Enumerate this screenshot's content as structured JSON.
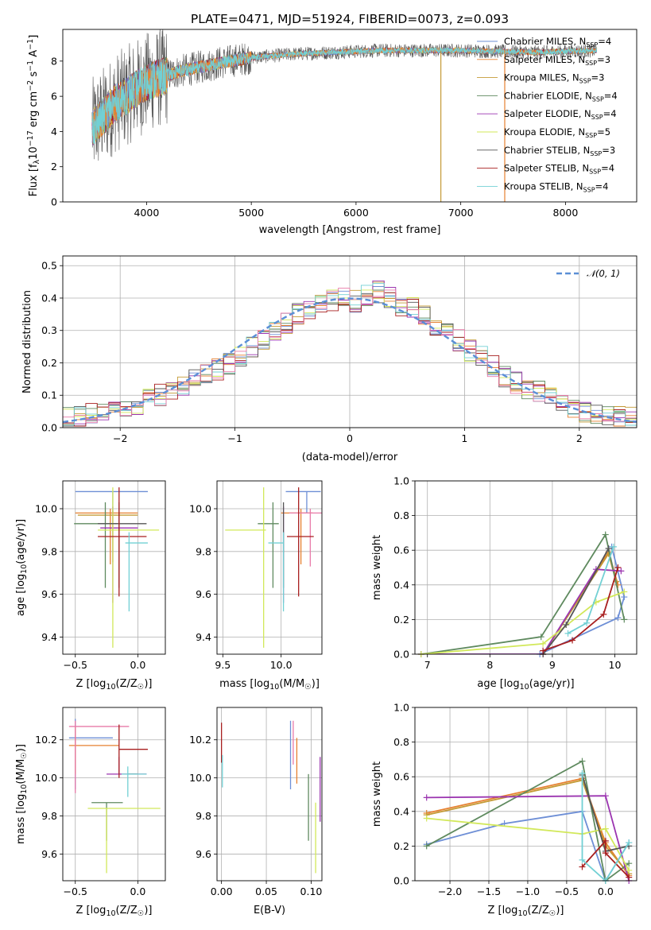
{
  "figure": {
    "title": "PLATE=0471, MJD=51924, FIBERID=0073, z=0.093"
  },
  "colors": {
    "Chabrier MILES": "#6e8fd6",
    "Salpeter MILES": "#e68030",
    "Kroupa MILES": "#c49a35",
    "Chabrier ELODIE": "#5f8a5f",
    "Salpeter ELODIE": "#9b35b0",
    "Kroupa ELODIE": "#d2e85a",
    "Chabrier STELIB": "#555555",
    "Salpeter STELIB": "#a81f1f",
    "Kroupa STELIB": "#72d0d4",
    "Pink": "#e87aa8",
    "Normal": "#5b8fd6"
  },
  "chart_data": [
    {
      "id": "spectrum",
      "type": "line",
      "xlabel": "wavelength [Angstrom, rest frame]",
      "ylabel_parts": [
        "Flux [f",
        "λ",
        "10",
        "−17",
        " erg cm",
        "−2",
        " s",
        "−1",
        " A",
        "−1",
        "]"
      ],
      "xlim": [
        3200,
        8680
      ],
      "ylim": [
        0,
        9.8
      ],
      "xticks": [
        4000,
        5000,
        6000,
        7000,
        8000
      ],
      "yticks": [
        0,
        2,
        4,
        6,
        8
      ],
      "continuum": {
        "x": [
          3480,
          3700,
          4000,
          4300,
          4700,
          5000,
          5400,
          5800,
          6200,
          6600,
          7000,
          7400,
          7700,
          8000,
          8300
        ],
        "y": [
          4.2,
          5.6,
          6.8,
          7.4,
          7.9,
          8.2,
          8.4,
          8.5,
          8.6,
          8.6,
          8.6,
          8.55,
          8.5,
          8.55,
          8.6
        ]
      },
      "spikes": [
        {
          "x": 6810,
          "y": 0,
          "color": "#c49a35"
        },
        {
          "x": 7420,
          "y": 0,
          "color": "#e68030"
        }
      ],
      "legend": [
        {
          "label": "Chabrier MILES, N",
          "sub": "SSP",
          "val": "=4",
          "color": "#6e8fd6"
        },
        {
          "label": "Salpeter MILES, N",
          "sub": "SSP",
          "val": "=3",
          "color": "#e68030"
        },
        {
          "label": "Kroupa MILES, N",
          "sub": "SSP",
          "val": "=3",
          "color": "#c49a35"
        },
        {
          "label": "Chabrier ELODIE, N",
          "sub": "SSP",
          "val": "=4",
          "color": "#5f8a5f"
        },
        {
          "label": "Salpeter ELODIE, N",
          "sub": "SSP",
          "val": "=4",
          "color": "#9b35b0"
        },
        {
          "label": "Kroupa ELODIE, N",
          "sub": "SSP",
          "val": "=5",
          "color": "#d2e85a"
        },
        {
          "label": "Chabrier STELIB, N",
          "sub": "SSP",
          "val": "=3",
          "color": "#555555"
        },
        {
          "label": "Salpeter STELIB, N",
          "sub": "SSP",
          "val": "=4",
          "color": "#a81f1f"
        },
        {
          "label": "Kroupa STELIB, N",
          "sub": "SSP",
          "val": "=4",
          "color": "#72d0d4"
        }
      ]
    },
    {
      "id": "residuals",
      "type": "histogram",
      "xlabel": "(data-model)/error",
      "ylabel": "Normed distribution",
      "xlim": [
        -2.5,
        2.5
      ],
      "ylim": [
        0,
        0.53
      ],
      "xticks": [
        -2,
        -1,
        0,
        1,
        2
      ],
      "yticks": [
        0.0,
        0.1,
        0.2,
        0.3,
        0.4,
        0.5
      ],
      "bin_width": 0.1,
      "bin_start": -2.5,
      "histogram": [
        0.03,
        0.03,
        0.04,
        0.05,
        0.07,
        0.06,
        0.07,
        0.09,
        0.1,
        0.11,
        0.13,
        0.15,
        0.16,
        0.18,
        0.2,
        0.22,
        0.25,
        0.27,
        0.3,
        0.32,
        0.35,
        0.36,
        0.38,
        0.39,
        0.4,
        0.39,
        0.41,
        0.42,
        0.4,
        0.38,
        0.37,
        0.35,
        0.32,
        0.29,
        0.27,
        0.24,
        0.22,
        0.19,
        0.16,
        0.14,
        0.12,
        0.11,
        0.09,
        0.07,
        0.06,
        0.05,
        0.04,
        0.04,
        0.03,
        0.03
      ],
      "normal_curve": {
        "label": "𝒩(0, 1)",
        "mean": 0,
        "sigma": 1,
        "color": "#5b8fd6"
      }
    },
    {
      "id": "age-vs-z",
      "type": "errorbar",
      "xlabel_parts": [
        "Z [log",
        "10",
        "(Z/Z",
        "☉",
        ")]"
      ],
      "ylabel_parts": [
        "age  [log",
        "10",
        "(age/yr)]"
      ],
      "xlim": [
        -0.6,
        0.22
      ],
      "ylim": [
        9.32,
        10.13
      ],
      "xticks": [
        -0.5,
        0.0
      ],
      "yticks": [
        9.4,
        9.6,
        9.8,
        10.0
      ],
      "points": [
        {
          "x": -0.2,
          "xerr": [
            0.3,
            0.28
          ],
          "y": 10.08,
          "yerr": [
            0.1,
            0.0
          ],
          "color": "#6e8fd6"
        },
        {
          "x": -0.22,
          "xerr": [
            0.28,
            0.22
          ],
          "y": 9.98,
          "yerr": [
            0.24,
            0.02
          ],
          "color": "#e68030"
        },
        {
          "x": -0.2,
          "xerr": [
            0.28,
            0.2
          ],
          "y": 9.97,
          "yerr": [
            0.22,
            0.02
          ],
          "color": "#c49a35"
        },
        {
          "x": -0.26,
          "xerr": [
            0.25,
            0.1
          ],
          "y": 9.93,
          "yerr": [
            0.3,
            0.1
          ],
          "color": "#5f8a5f"
        },
        {
          "x": -0.2,
          "xerr": [
            0.1,
            0.2
          ],
          "y": 9.91,
          "yerr": [
            0.35,
            0.1
          ],
          "color": "#9b35b0"
        },
        {
          "x": -0.2,
          "xerr": [
            0.12,
            0.37
          ],
          "y": 9.9,
          "yerr": [
            0.55,
            0.2
          ],
          "color": "#d2e85a"
        },
        {
          "x": -0.15,
          "xerr": [
            0.17,
            0.22
          ],
          "y": 9.93,
          "yerr": [
            0.3,
            0.1
          ],
          "color": "#555555"
        },
        {
          "x": -0.15,
          "xerr": [
            0.17,
            0.22
          ],
          "y": 9.87,
          "yerr": [
            0.28,
            0.23
          ],
          "color": "#a81f1f"
        },
        {
          "x": -0.07,
          "xerr": [
            0.03,
            0.15
          ],
          "y": 9.84,
          "yerr": [
            0.32,
            0.05
          ],
          "color": "#72d0d4"
        }
      ]
    },
    {
      "id": "age-vs-mass",
      "type": "errorbar",
      "xlabel_parts": [
        "mass [log",
        "10",
        "(M/M",
        "☉",
        ")]"
      ],
      "ylabel_parts": [],
      "xlim": [
        9.45,
        10.35
      ],
      "ylim": [
        9.32,
        10.13
      ],
      "xticks": [
        9.5,
        10.0
      ],
      "yticks": [
        9.4,
        9.6,
        9.8,
        10.0
      ],
      "points": [
        {
          "x": 10.22,
          "xerr": [
            0.18,
            0.12
          ],
          "y": 10.08,
          "yerr": [
            0.1,
            0.0
          ],
          "color": "#6e8fd6"
        },
        {
          "x": 10.17,
          "xerr": [
            0.17,
            0.1
          ],
          "y": 9.98,
          "yerr": [
            0.24,
            0.02
          ],
          "color": "#e68030"
        },
        {
          "x": 10.25,
          "xerr": [
            0.18,
            0.1
          ],
          "y": 9.98,
          "yerr": [
            0.25,
            0.02
          ],
          "color": "#e87aa8"
        },
        {
          "x": 9.93,
          "xerr": [
            0.13,
            0.05
          ],
          "y": 9.93,
          "yerr": [
            0.3,
            0.1
          ],
          "color": "#5f8a5f"
        },
        {
          "x": 10.02,
          "xerr": [
            0.0,
            0.0
          ],
          "y": 9.91,
          "yerr": [
            0.35,
            0.1
          ],
          "color": "#9b35b0"
        },
        {
          "x": 9.85,
          "xerr": [
            0.33,
            0.02
          ],
          "y": 9.9,
          "yerr": [
            0.55,
            0.2
          ],
          "color": "#d2e85a"
        },
        {
          "x": 10.02,
          "xerr": [
            0.0,
            0.0
          ],
          "y": 9.93,
          "yerr": [
            0.3,
            0.1
          ],
          "color": "#555555"
        },
        {
          "x": 10.15,
          "xerr": [
            0.1,
            0.13
          ],
          "y": 9.87,
          "yerr": [
            0.28,
            0.23
          ],
          "color": "#a81f1f"
        },
        {
          "x": 10.02,
          "xerr": [
            0.13,
            0.0
          ],
          "y": 9.84,
          "yerr": [
            0.32,
            0.05
          ],
          "color": "#72d0d4"
        }
      ]
    },
    {
      "id": "weight-vs-age",
      "type": "line",
      "xlabel_parts": [
        "age  [log",
        "10",
        "(age/yr)]"
      ],
      "ylabel": "mass weight",
      "xlim": [
        6.8,
        10.35
      ],
      "ylim": [
        0,
        1.0
      ],
      "xticks": [
        7,
        8,
        9,
        10
      ],
      "yticks": [
        0.0,
        0.2,
        0.4,
        0.6,
        0.8,
        1.0
      ],
      "series": [
        {
          "color": "#6e8fd6",
          "x": [
            8.8,
            10.05,
            10.15,
            9.95
          ],
          "y": [
            0.0,
            0.21,
            0.33,
            0.62
          ]
        },
        {
          "color": "#e68030",
          "x": [
            8.85,
            9.9,
            10.05
          ],
          "y": [
            0.0,
            0.59,
            0.4
          ]
        },
        {
          "color": "#c49a35",
          "x": [
            8.85,
            9.9,
            10.02
          ],
          "y": [
            0.0,
            0.58,
            0.42
          ]
        },
        {
          "color": "#5f8a5f",
          "x": [
            6.9,
            8.82,
            9.85,
            10.15
          ],
          "y": [
            0.0,
            0.1,
            0.69,
            0.2
          ]
        },
        {
          "color": "#9b35b0",
          "x": [
            6.9,
            8.85,
            9.7,
            10.1
          ],
          "y": [
            0.0,
            0.0,
            0.49,
            0.48
          ]
        },
        {
          "color": "#d2e85a",
          "x": [
            6.9,
            8.85,
            9.7,
            10.15
          ],
          "y": [
            0.0,
            0.06,
            0.3,
            0.36
          ]
        },
        {
          "color": "#555555",
          "x": [
            8.85,
            9.22,
            9.9
          ],
          "y": [
            0.0,
            0.17,
            0.61
          ]
        },
        {
          "color": "#a81f1f",
          "x": [
            8.85,
            9.32,
            9.82,
            10.05
          ],
          "y": [
            0.02,
            0.08,
            0.23,
            0.5
          ]
        },
        {
          "color": "#72d0d4",
          "x": [
            9.25,
            9.55,
            9.98
          ],
          "y": [
            0.12,
            0.18,
            0.62
          ]
        }
      ]
    },
    {
      "id": "mass-vs-z",
      "type": "errorbar",
      "xlabel_parts": [
        "Z [log",
        "10",
        "(Z/Z",
        "☉",
        ")]"
      ],
      "ylabel_parts": [
        "mass [log",
        "10",
        "(M/M",
        "☉",
        ")]"
      ],
      "xlim": [
        -0.6,
        0.22
      ],
      "ylim": [
        9.46,
        10.37
      ],
      "xticks": [
        -0.5,
        0.0
      ],
      "yticks": [
        9.6,
        9.8,
        10.0,
        10.2
      ],
      "points": [
        {
          "x": -0.5,
          "xerr": [
            0.05,
            0.3
          ],
          "y": 10.21,
          "yerr": [
            0.27,
            0.1
          ],
          "color": "#6e8fd6"
        },
        {
          "x": -0.5,
          "xerr": [
            0.05,
            0.35
          ],
          "y": 10.17,
          "yerr": [
            0.15,
            0.1
          ],
          "color": "#e68030"
        },
        {
          "x": -0.5,
          "xerr": [
            0.05,
            0.43
          ],
          "y": 10.27,
          "yerr": [
            0.35,
            0.03
          ],
          "color": "#e87aa8"
        },
        {
          "x": -0.25,
          "xerr": [
            0.12,
            0.13
          ],
          "y": 9.87,
          "yerr": [
            0.2,
            0.0
          ],
          "color": "#5f8a5f"
        },
        {
          "x": -0.15,
          "xerr": [
            0.1,
            0.22
          ],
          "y": 10.02,
          "yerr": [
            0.0,
            0.09
          ],
          "color": "#9b35b0"
        },
        {
          "x": -0.25,
          "xerr": [
            0.15,
            0.43
          ],
          "y": 9.84,
          "yerr": [
            0.34,
            0.0
          ],
          "color": "#d2e85a"
        },
        {
          "x": -0.08,
          "xerr": [
            0.0,
            0.08
          ],
          "y": 10.02,
          "yerr": [
            0.0,
            0.0
          ],
          "color": "#555555"
        },
        {
          "x": -0.15,
          "xerr": [
            0.0,
            0.23
          ],
          "y": 10.15,
          "yerr": [
            0.15,
            0.13
          ],
          "color": "#a81f1f"
        },
        {
          "x": -0.08,
          "xerr": [
            0.05,
            0.15
          ],
          "y": 10.02,
          "yerr": [
            0.12,
            0.04
          ],
          "color": "#72d0d4"
        }
      ]
    },
    {
      "id": "mass-vs-ebv",
      "type": "errorbar",
      "xlabel": "E(B-V)",
      "ylabel_parts": [],
      "xlim": [
        -0.005,
        0.112
      ],
      "ylim": [
        9.46,
        10.37
      ],
      "xticks": [
        0.0,
        0.05,
        0.1
      ],
      "ytick_labels": [
        "0.00",
        "0.05",
        "0.10"
      ],
      "yticks": [
        9.6,
        9.8,
        10.0,
        10.2
      ],
      "points": [
        {
          "x": 0.0,
          "y": 10.18,
          "yerr": [
            0.1,
            0.11
          ],
          "color": "#a81f1f"
        },
        {
          "x": 0.001,
          "y": 10.0,
          "yerr": [
            0.05,
            0.12
          ],
          "color": "#72d0d4"
        },
        {
          "x": 0.077,
          "y": 10.12,
          "yerr": [
            0.18,
            0.18
          ],
          "color": "#6e8fd6"
        },
        {
          "x": 0.08,
          "y": 10.15,
          "yerr": [
            0.08,
            0.15
          ],
          "color": "#e87aa8"
        },
        {
          "x": 0.084,
          "y": 10.07,
          "yerr": [
            0.1,
            0.14
          ],
          "color": "#e68030"
        },
        {
          "x": 0.097,
          "y": 9.85,
          "yerr": [
            0.18,
            0.17
          ],
          "color": "#5f8a5f"
        },
        {
          "x": 0.105,
          "y": 9.77,
          "yerr": [
            0.27,
            0.1
          ],
          "color": "#d2e85a"
        },
        {
          "x": 0.11,
          "y": 9.94,
          "yerr": [
            0.17,
            0.17
          ],
          "color": "#9b35b0"
        }
      ]
    },
    {
      "id": "weight-vs-z",
      "type": "line",
      "xlabel_parts": [
        "Z [log",
        "10",
        "(Z/Z",
        "☉",
        ")]"
      ],
      "ylabel": "mass weight",
      "xlim": [
        -2.45,
        0.4
      ],
      "ylim": [
        0,
        1.0
      ],
      "xticks": [
        -2.0,
        -1.5,
        -1.0,
        -0.5,
        0.0
      ],
      "ytick_fmt": 1,
      "yticks": [
        0.0,
        0.2,
        0.4,
        0.6,
        0.8,
        1.0
      ],
      "series": [
        {
          "color": "#6e8fd6",
          "x": [
            -2.3,
            -1.3,
            -0.3,
            0.0,
            0.3
          ],
          "y": [
            0.21,
            0.33,
            0.4,
            0.0,
            0.22
          ]
        },
        {
          "color": "#e68030",
          "x": [
            -2.3,
            -0.3,
            0.0,
            0.3
          ],
          "y": [
            0.39,
            0.59,
            0.22,
            0.03
          ]
        },
        {
          "color": "#c49a35",
          "x": [
            -2.3,
            -0.3,
            0.0,
            0.3
          ],
          "y": [
            0.38,
            0.58,
            0.2,
            0.04
          ]
        },
        {
          "color": "#5f8a5f",
          "x": [
            -2.3,
            -0.3,
            0.0,
            0.3
          ],
          "y": [
            0.2,
            0.69,
            0.0,
            0.1
          ]
        },
        {
          "color": "#9b35b0",
          "x": [
            -2.3,
            0.0,
            0.3
          ],
          "y": [
            0.48,
            0.49,
            0.0
          ]
        },
        {
          "color": "#d2e85a",
          "x": [
            -2.3,
            -0.3,
            0.0,
            0.3
          ],
          "y": [
            0.36,
            0.27,
            0.3,
            0.06
          ]
        },
        {
          "color": "#555555",
          "x": [
            -0.3,
            0.0,
            0.3
          ],
          "y": [
            0.61,
            0.17,
            0.2
          ]
        },
        {
          "color": "#a81f1f",
          "x": [
            -0.3,
            0.0,
            0.0,
            0.3
          ],
          "y": [
            0.08,
            0.23,
            0.16,
            0.02
          ]
        },
        {
          "color": "#72d0d4",
          "x": [
            -0.3,
            -0.3,
            0.0,
            0.3
          ],
          "y": [
            0.62,
            0.12,
            0.0,
            0.22
          ]
        }
      ]
    }
  ]
}
